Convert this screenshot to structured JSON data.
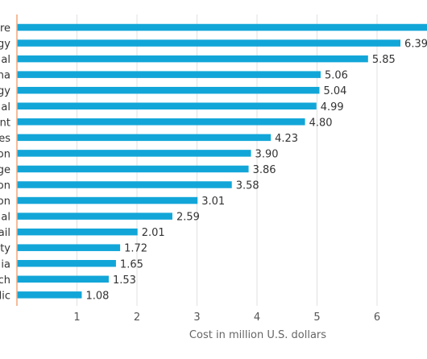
{
  "chart_data": {
    "type": "bar",
    "orientation": "horizontal",
    "categories": [
      "re",
      "gy",
      "al",
      "na",
      "gy",
      "al",
      "nt",
      "es",
      "on",
      "ge",
      "on",
      "on",
      "al",
      "ail",
      "ty",
      "ia",
      "ch",
      "lic"
    ],
    "values": [
      7.13,
      6.39,
      5.85,
      5.06,
      5.04,
      4.99,
      4.8,
      4.23,
      3.9,
      3.86,
      3.58,
      3.01,
      2.59,
      2.01,
      1.72,
      1.65,
      1.53,
      1.08
    ],
    "value_labels": [
      "",
      "6.39",
      "5.85",
      "5.06",
      "5.04",
      "4.99",
      "4.80",
      "4.23",
      "3.90",
      "3.86",
      "3.58",
      "3.01",
      "2.59",
      "2.01",
      "1.72",
      "1.65",
      "1.53",
      "1.08"
    ],
    "x_ticks": [
      "1",
      "2",
      "3",
      "4",
      "5",
      "6"
    ],
    "x_tick_values": [
      1,
      2,
      3,
      4,
      5,
      6
    ],
    "xlabel": "Cost in million U.S. dollars",
    "ylabel": "",
    "title": "",
    "xlim": [
      0,
      6.99
    ],
    "grid": "vertical",
    "colors": {
      "bar": "#12a6d8",
      "baseline": "#f0a57a",
      "grid": "#e1e1e1",
      "label": "#333333",
      "axis_text": "#555555"
    }
  }
}
